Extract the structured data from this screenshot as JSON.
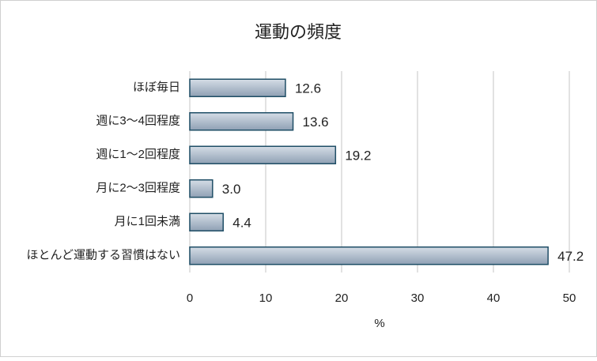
{
  "chart_data": {
    "type": "bar",
    "orientation": "horizontal",
    "title": "運動の頻度",
    "categories": [
      "ほぼ毎日",
      "週に3～4回程度",
      "週に1～2回程度",
      "月に2～3回程度",
      "月に1回未満",
      "ほとんど運動する習慣はない"
    ],
    "values": [
      12.6,
      13.6,
      19.2,
      3.0,
      4.4,
      47.2
    ],
    "value_labels": [
      "12.6",
      "13.6",
      "19.2",
      "3.0",
      "4.4",
      "47.2"
    ],
    "color": "#8fa0b4",
    "edge_color": "#1f4e66",
    "xlabel": "%",
    "xlim": [
      0,
      50
    ],
    "xticks": [
      0,
      10,
      20,
      30,
      40,
      50
    ],
    "grid": true
  }
}
